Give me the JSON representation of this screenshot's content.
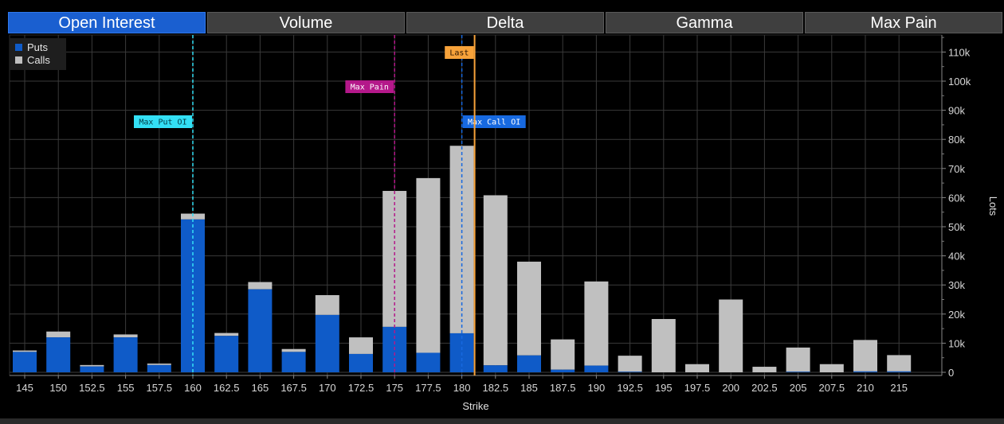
{
  "tabs": [
    {
      "label": "Open Interest",
      "active": true
    },
    {
      "label": "Volume",
      "active": false
    },
    {
      "label": "Delta",
      "active": false
    },
    {
      "label": "Gamma",
      "active": false
    },
    {
      "label": "Max Pain",
      "active": false
    }
  ],
  "colors": {
    "puts": "#0f5bc8",
    "calls": "#c0c0c0",
    "max_put": "#33e0f5",
    "max_pain": "#b4188a",
    "max_call": "#1769e0",
    "last": "#f7a23a",
    "grid": "#3a3a3a"
  },
  "chart_data": {
    "type": "bar",
    "stacked": true,
    "title": "",
    "xlabel": "Strike",
    "ylabel": "Lots",
    "ylim": [
      0,
      115000
    ],
    "y_ticks": [
      0,
      10000,
      20000,
      30000,
      40000,
      50000,
      60000,
      70000,
      80000,
      90000,
      100000,
      110000
    ],
    "y_tick_labels": [
      "0",
      "10k",
      "20k",
      "30k",
      "40k",
      "50k",
      "60k",
      "70k",
      "80k",
      "90k",
      "100k",
      "110k"
    ],
    "grid": true,
    "legend_position": "top-left",
    "categories": [
      "145",
      "150",
      "152.5",
      "155",
      "157.5",
      "160",
      "162.5",
      "165",
      "167.5",
      "170",
      "172.5",
      "175",
      "177.5",
      "180",
      "182.5",
      "185",
      "187.5",
      "190",
      "192.5",
      "195",
      "197.5",
      "200",
      "202.5",
      "205",
      "207.5",
      "210",
      "215"
    ],
    "series": [
      {
        "name": "Puts",
        "values": [
          7000,
          12000,
          2000,
          12000,
          2500,
          52500,
          12500,
          28500,
          7000,
          19700,
          6300,
          15600,
          6700,
          13400,
          2400,
          5800,
          900,
          2300,
          200,
          0,
          0,
          0,
          0,
          200,
          0,
          300,
          300
        ]
      },
      {
        "name": "Calls",
        "values": [
          500,
          2000,
          500,
          1000,
          500,
          2000,
          1000,
          2500,
          1000,
          6800,
          5700,
          46700,
          60000,
          64400,
          58400,
          32200,
          10400,
          28900,
          5500,
          18300,
          2800,
          25000,
          1900,
          8300,
          2800,
          10800,
          5600
        ]
      }
    ],
    "markers": [
      {
        "name": "Max Put OI",
        "strike": 160,
        "label": "Max Put OI",
        "style": "dashed"
      },
      {
        "name": "Max Pain",
        "strike": 175,
        "label": "Max Pain",
        "style": "dashed"
      },
      {
        "name": "Max Call OI",
        "strike": 180,
        "label": "Max Call OI",
        "style": "dashed"
      },
      {
        "name": "Last",
        "strike": 181,
        "label": "Last",
        "style": "solid"
      }
    ]
  }
}
